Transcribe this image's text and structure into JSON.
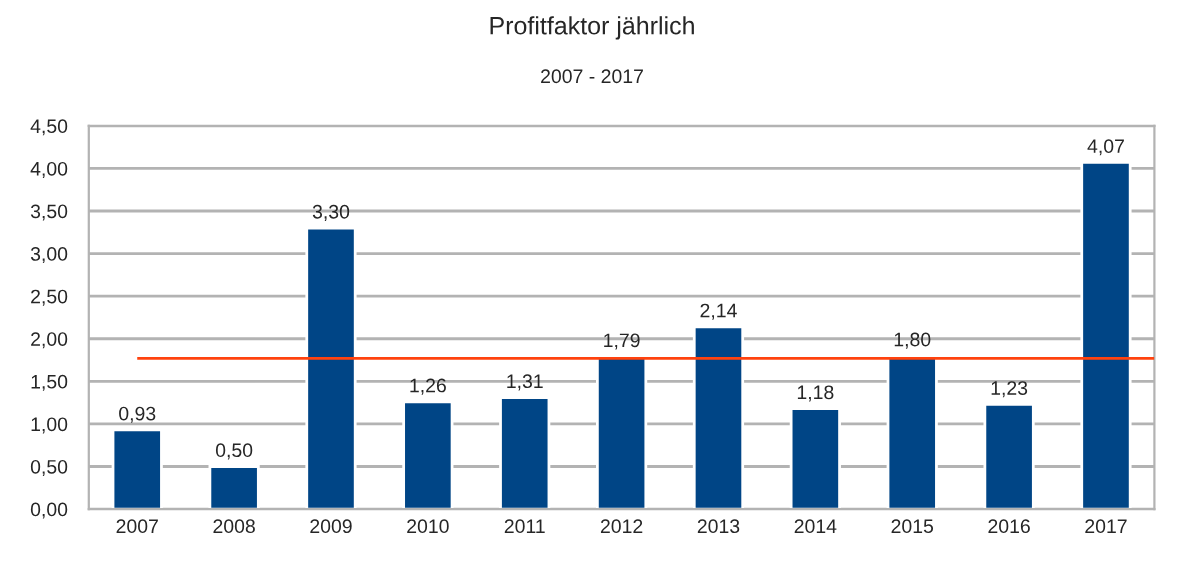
{
  "chart_data": {
    "type": "bar",
    "title": "Profitfaktor jährlich",
    "subtitle": "2007 - 2017",
    "categories": [
      "2007",
      "2008",
      "2009",
      "2010",
      "2011",
      "2012",
      "2013",
      "2014",
      "2015",
      "2016",
      "2017"
    ],
    "values": [
      0.93,
      0.5,
      3.3,
      1.26,
      1.31,
      1.79,
      2.14,
      1.18,
      1.8,
      1.23,
      4.07
    ],
    "color": "#004586",
    "value_labels": [
      "0,93",
      "0,50",
      "3,30",
      "1,26",
      "1,31",
      "1,79",
      "2,14",
      "1,18",
      "1,80",
      "1,23",
      "4,07"
    ],
    "ylim": [
      0,
      4.5
    ],
    "yticks": [
      {
        "value": 0,
        "label": "0,00"
      },
      {
        "value": 0.5,
        "label": "0,50"
      },
      {
        "value": 1,
        "label": "1,00"
      },
      {
        "value": 1.5,
        "label": "1,50"
      },
      {
        "value": 2,
        "label": "2,00"
      },
      {
        "value": 2.5,
        "label": "2,50"
      },
      {
        "value": 3,
        "label": "3,00"
      },
      {
        "value": 3.5,
        "label": "3,50"
      },
      {
        "value": 4,
        "label": "4,00"
      },
      {
        "value": 4.5,
        "label": "4,50"
      }
    ],
    "ref_lines": [
      {
        "axis": "y",
        "value": 1.77,
        "color": "#ff420e"
      }
    ],
    "grid": "y",
    "legend": false
  }
}
